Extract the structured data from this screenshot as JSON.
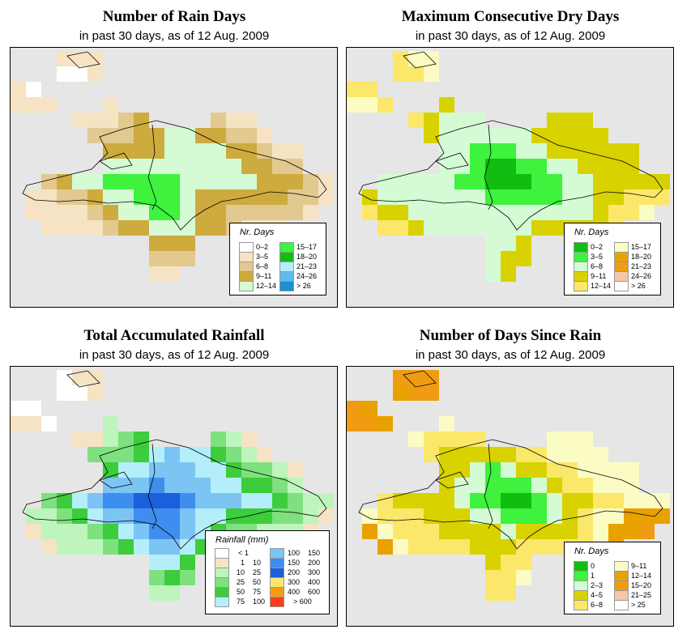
{
  "panels": [
    {
      "id": "rain-days",
      "title": "Number of Rain Days",
      "subtitle": "in past 30 days, as of  12 Aug. 2009",
      "legend": {
        "title": "Nr. Days",
        "items": [
          {
            "label": "0–2",
            "color": "#ffffff"
          },
          {
            "label": "3–5",
            "color": "#f5e3c4"
          },
          {
            "label": "6–8",
            "color": "#e2c98f"
          },
          {
            "label": "9–11",
            "color": "#ceab3f"
          },
          {
            "label": "12–14",
            "color": "#d4fbd4"
          },
          {
            "label": "15–17",
            "color": "#3ef23e"
          },
          {
            "label": "18–20",
            "color": "#11bd11"
          },
          {
            "label": "21–23",
            "color": "#b4eefb"
          },
          {
            "label": "24–26",
            "color": "#5fbcef"
          },
          {
            "label": "> 26",
            "color": "#1c8ed4"
          }
        ]
      }
    },
    {
      "id": "dry-days",
      "title": "Maximum Consecutive Dry Days",
      "subtitle": "in past 30 days, as of  12 Aug. 2009",
      "legend": {
        "title": "Nr. Days",
        "items": [
          {
            "label": "0–2",
            "color": "#11bd11"
          },
          {
            "label": "3–5",
            "color": "#3ef23e"
          },
          {
            "label": "6–8",
            "color": "#d4fbd4"
          },
          {
            "label": "9–11",
            "color": "#d8d200"
          },
          {
            "label": "12–14",
            "color": "#fbe76a"
          },
          {
            "label": "15–17",
            "color": "#fbfbc4"
          },
          {
            "label": "18–20",
            "color": "#e8a200"
          },
          {
            "label": "21–23",
            "color": "#f09c12"
          },
          {
            "label": "24–26",
            "color": "#f7c6a6"
          },
          {
            "label": "> 26",
            "color": "#ffffff"
          }
        ]
      }
    },
    {
      "id": "total-rainfall",
      "title": "Total Accumulated Rainfall",
      "subtitle": "in past 30 days, as of  12 Aug. 2009",
      "legend": {
        "title": "Rainfall (mm)",
        "items": [
          {
            "lo": "",
            "hi": "< 1",
            "color": "#ffffff"
          },
          {
            "lo": "1",
            "hi": "10",
            "color": "#f5e3c4"
          },
          {
            "lo": "10",
            "hi": "25",
            "color": "#bdf5bd"
          },
          {
            "lo": "25",
            "hi": "50",
            "color": "#7ee07e"
          },
          {
            "lo": "50",
            "hi": "75",
            "color": "#3ccc3c"
          },
          {
            "lo": "75",
            "hi": "100",
            "color": "#b4eefb"
          },
          {
            "lo": "100",
            "hi": "150",
            "color": "#7cc4f4"
          },
          {
            "lo": "150",
            "hi": "200",
            "color": "#3e8ef0"
          },
          {
            "lo": "200",
            "hi": "300",
            "color": "#1c5fdc"
          },
          {
            "lo": "300",
            "hi": "400",
            "color": "#fbe76a"
          },
          {
            "lo": "400",
            "hi": "600",
            "color": "#f29e14"
          },
          {
            "lo": "",
            "hi": "> 600",
            "color": "#ff3c1c"
          }
        ]
      }
    },
    {
      "id": "days-since-rain",
      "title": "Number of Days Since Rain",
      "subtitle": "in past 30 days, as of  12 Aug. 2009",
      "legend": {
        "title": "Nr. Days",
        "items": [
          {
            "label": "0",
            "color": "#11bd11"
          },
          {
            "label": "1",
            "color": "#3ef23e"
          },
          {
            "label": "2–3",
            "color": "#d4fbd4"
          },
          {
            "label": "4–5",
            "color": "#d8d200"
          },
          {
            "label": "6–8",
            "color": "#fbe76a"
          },
          {
            "label": "9–11",
            "color": "#fbfbc4"
          },
          {
            "label": "12–14",
            "color": "#e8a200"
          },
          {
            "label": "15–20",
            "color": "#f09c12"
          },
          {
            "label": "21–25",
            "color": "#f7c6a6"
          },
          {
            "label": "> 25",
            "color": "#ffffff"
          }
        ]
      }
    }
  ],
  "map_background": "#e6e6e6"
}
